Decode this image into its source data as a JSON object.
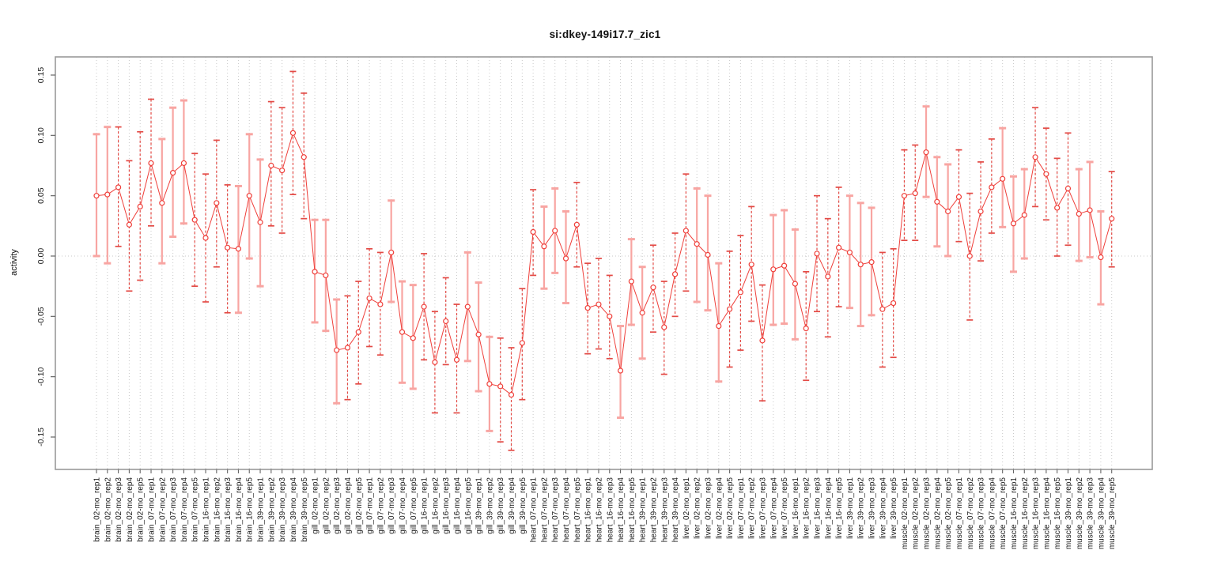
{
  "figure": {
    "title": "si:dkey-149i17.7_zic1"
  },
  "chart_data": {
    "type": "scatter",
    "title": "si:dkey-149i17.7_zic1",
    "xlabel": "",
    "ylabel": "activity",
    "ylim": [
      -0.177,
      0.165
    ],
    "yticks": [
      -0.15,
      -0.1,
      -0.05,
      0.0,
      0.05,
      0.1,
      0.15
    ],
    "grid": "dotted vertical gridline per sample; dotted horizontal line at y=0",
    "legend": "none",
    "marker": "open-circle with error bars, connected by line",
    "colors": {
      "series": "#ef3f3a",
      "bar_dark": "#e34a45",
      "bar_light": "#f8a5a2",
      "grid": "#c9c9c9",
      "frame": "#9a9a9a",
      "tick": "#666666",
      "text": "#1a1a1a"
    },
    "points": [
      {
        "label": "brain_02-mo_rep1",
        "value": 0.05,
        "lo": 0.0,
        "hi": 0.101
      },
      {
        "label": "brain_02-mo_rep2",
        "value": 0.051,
        "lo": -0.006,
        "hi": 0.107
      },
      {
        "label": "brain_02-mo_rep3",
        "value": 0.057,
        "lo": 0.008,
        "hi": 0.107
      },
      {
        "label": "brain_02-mo_rep4",
        "value": 0.026,
        "lo": -0.029,
        "hi": 0.079
      },
      {
        "label": "brain_02-mo_rep5",
        "value": 0.041,
        "lo": -0.02,
        "hi": 0.103
      },
      {
        "label": "brain_07-mo_rep1",
        "value": 0.077,
        "lo": 0.025,
        "hi": 0.13
      },
      {
        "label": "brain_07-mo_rep2",
        "value": 0.044,
        "lo": -0.006,
        "hi": 0.097
      },
      {
        "label": "brain_07-mo_rep3",
        "value": 0.069,
        "lo": 0.016,
        "hi": 0.123
      },
      {
        "label": "brain_07-mo_rep4",
        "value": 0.077,
        "lo": 0.027,
        "hi": 0.129
      },
      {
        "label": "brain_07-mo_rep5",
        "value": 0.03,
        "lo": -0.025,
        "hi": 0.085
      },
      {
        "label": "brain_16-mo_rep1",
        "value": 0.015,
        "lo": -0.038,
        "hi": 0.068
      },
      {
        "label": "brain_16-mo_rep2",
        "value": 0.044,
        "lo": -0.009,
        "hi": 0.096
      },
      {
        "label": "brain_16-mo_rep3",
        "value": 0.007,
        "lo": -0.047,
        "hi": 0.059
      },
      {
        "label": "brain_16-mo_rep4",
        "value": 0.006,
        "lo": -0.047,
        "hi": 0.058
      },
      {
        "label": "brain_16-mo_rep5",
        "value": 0.05,
        "lo": -0.002,
        "hi": 0.101
      },
      {
        "label": "brain_39-mo_rep1",
        "value": 0.028,
        "lo": -0.025,
        "hi": 0.08
      },
      {
        "label": "brain_39-mo_rep2",
        "value": 0.075,
        "lo": 0.025,
        "hi": 0.128
      },
      {
        "label": "brain_39-mo_rep3",
        "value": 0.071,
        "lo": 0.019,
        "hi": 0.123
      },
      {
        "label": "brain_39-mo_rep4",
        "value": 0.102,
        "lo": 0.051,
        "hi": 0.153
      },
      {
        "label": "brain_39-mo_rep5",
        "value": 0.082,
        "lo": 0.031,
        "hi": 0.135
      },
      {
        "label": "gill_02-mo_rep1",
        "value": -0.013,
        "lo": -0.055,
        "hi": 0.03
      },
      {
        "label": "gill_02-mo_rep2",
        "value": -0.016,
        "lo": -0.062,
        "hi": 0.03
      },
      {
        "label": "gill_02-mo_rep3",
        "value": -0.078,
        "lo": -0.122,
        "hi": -0.036
      },
      {
        "label": "gill_02-mo_rep4",
        "value": -0.076,
        "lo": -0.119,
        "hi": -0.033
      },
      {
        "label": "gill_02-mo_rep5",
        "value": -0.063,
        "lo": -0.106,
        "hi": -0.021
      },
      {
        "label": "gill_07-mo_rep1",
        "value": -0.035,
        "lo": -0.075,
        "hi": 0.006
      },
      {
        "label": "gill_07-mo_rep2",
        "value": -0.04,
        "lo": -0.082,
        "hi": 0.003
      },
      {
        "label": "gill_07-mo_rep3",
        "value": 0.003,
        "lo": -0.038,
        "hi": 0.046
      },
      {
        "label": "gill_07-mo_rep4",
        "value": -0.063,
        "lo": -0.105,
        "hi": -0.021
      },
      {
        "label": "gill_07-mo_rep5",
        "value": -0.068,
        "lo": -0.11,
        "hi": -0.024
      },
      {
        "label": "gill_16-mo_rep1",
        "value": -0.042,
        "lo": -0.086,
        "hi": 0.002
      },
      {
        "label": "gill_16-mo_rep2",
        "value": -0.088,
        "lo": -0.13,
        "hi": -0.046
      },
      {
        "label": "gill_16-mo_rep3",
        "value": -0.054,
        "lo": -0.09,
        "hi": -0.018
      },
      {
        "label": "gill_16-mo_rep4",
        "value": -0.086,
        "lo": -0.13,
        "hi": -0.04
      },
      {
        "label": "gill_16-mo_rep5",
        "value": -0.042,
        "lo": -0.087,
        "hi": 0.003
      },
      {
        "label": "gill_39-mo_rep1",
        "value": -0.065,
        "lo": -0.112,
        "hi": -0.022
      },
      {
        "label": "gill_39-mo_rep2",
        "value": -0.106,
        "lo": -0.145,
        "hi": -0.067
      },
      {
        "label": "gill_39-mo_rep3",
        "value": -0.108,
        "lo": -0.154,
        "hi": -0.068
      },
      {
        "label": "gill_39-mo_rep4",
        "value": -0.115,
        "lo": -0.161,
        "hi": -0.076
      },
      {
        "label": "gill_39-mo_rep5",
        "value": -0.072,
        "lo": -0.119,
        "hi": -0.027
      },
      {
        "label": "heart_07-mo_rep1",
        "value": 0.02,
        "lo": -0.016,
        "hi": 0.055
      },
      {
        "label": "heart_07-mo_rep2",
        "value": 0.008,
        "lo": -0.027,
        "hi": 0.041
      },
      {
        "label": "heart_07-mo_rep3",
        "value": 0.021,
        "lo": -0.014,
        "hi": 0.056
      },
      {
        "label": "heart_07-mo_rep4",
        "value": -0.002,
        "lo": -0.039,
        "hi": 0.037
      },
      {
        "label": "heart_07-mo_rep5",
        "value": 0.026,
        "lo": -0.009,
        "hi": 0.061
      },
      {
        "label": "heart_16-mo_rep1",
        "value": -0.043,
        "lo": -0.081,
        "hi": -0.006
      },
      {
        "label": "heart_16-mo_rep2",
        "value": -0.04,
        "lo": -0.077,
        "hi": -0.002
      },
      {
        "label": "heart_16-mo_rep3",
        "value": -0.05,
        "lo": -0.085,
        "hi": -0.016
      },
      {
        "label": "heart_16-mo_rep4",
        "value": -0.095,
        "lo": -0.134,
        "hi": -0.058
      },
      {
        "label": "heart_16-mo_rep5",
        "value": -0.021,
        "lo": -0.057,
        "hi": 0.014
      },
      {
        "label": "heart_39-mo_rep1",
        "value": -0.047,
        "lo": -0.085,
        "hi": -0.009
      },
      {
        "label": "heart_39-mo_rep2",
        "value": -0.026,
        "lo": -0.063,
        "hi": 0.009
      },
      {
        "label": "heart_39-mo_rep3",
        "value": -0.059,
        "lo": -0.098,
        "hi": -0.021
      },
      {
        "label": "heart_39-mo_rep4",
        "value": -0.015,
        "lo": -0.05,
        "hi": 0.019
      },
      {
        "label": "liver_02-mo_rep1",
        "value": 0.021,
        "lo": -0.029,
        "hi": 0.068
      },
      {
        "label": "liver_02-mo_rep2",
        "value": 0.01,
        "lo": -0.038,
        "hi": 0.056
      },
      {
        "label": "liver_02-mo_rep3",
        "value": 0.001,
        "lo": -0.045,
        "hi": 0.05
      },
      {
        "label": "liver_02-mo_rep4",
        "value": -0.058,
        "lo": -0.104,
        "hi": -0.006
      },
      {
        "label": "liver_02-mo_rep5",
        "value": -0.044,
        "lo": -0.092,
        "hi": 0.004
      },
      {
        "label": "liver_07-mo_rep1",
        "value": -0.03,
        "lo": -0.078,
        "hi": 0.017
      },
      {
        "label": "liver_07-mo_rep2",
        "value": -0.007,
        "lo": -0.054,
        "hi": 0.041
      },
      {
        "label": "liver_07-mo_rep3",
        "value": -0.07,
        "lo": -0.12,
        "hi": -0.024
      },
      {
        "label": "liver_07-mo_rep4",
        "value": -0.011,
        "lo": -0.057,
        "hi": 0.034
      },
      {
        "label": "liver_07-mo_rep5",
        "value": -0.008,
        "lo": -0.056,
        "hi": 0.038
      },
      {
        "label": "liver_16-mo_rep1",
        "value": -0.023,
        "lo": -0.069,
        "hi": 0.022
      },
      {
        "label": "liver_16-mo_rep2",
        "value": -0.06,
        "lo": -0.103,
        "hi": -0.013
      },
      {
        "label": "liver_16-mo_rep3",
        "value": 0.002,
        "lo": -0.046,
        "hi": 0.05
      },
      {
        "label": "liver_16-mo_rep4",
        "value": -0.017,
        "lo": -0.067,
        "hi": 0.031
      },
      {
        "label": "liver_16-mo_rep5",
        "value": 0.007,
        "lo": -0.042,
        "hi": 0.057
      },
      {
        "label": "liver_39-mo_rep1",
        "value": 0.003,
        "lo": -0.043,
        "hi": 0.05
      },
      {
        "label": "liver_39-mo_rep2",
        "value": -0.007,
        "lo": -0.058,
        "hi": 0.044
      },
      {
        "label": "liver_39-mo_rep3",
        "value": -0.005,
        "lo": -0.049,
        "hi": 0.04
      },
      {
        "label": "liver_39-mo_rep4",
        "value": -0.044,
        "lo": -0.092,
        "hi": 0.003
      },
      {
        "label": "liver_39-mo_rep5",
        "value": -0.039,
        "lo": -0.084,
        "hi": 0.006
      },
      {
        "label": "muscle_02-mo_rep1",
        "value": 0.05,
        "lo": 0.013,
        "hi": 0.088
      },
      {
        "label": "muscle_02-mo_rep2",
        "value": 0.052,
        "lo": 0.013,
        "hi": 0.092
      },
      {
        "label": "muscle_02-mo_rep3",
        "value": 0.086,
        "lo": 0.049,
        "hi": 0.124
      },
      {
        "label": "muscle_02-mo_rep4",
        "value": 0.045,
        "lo": 0.008,
        "hi": 0.082
      },
      {
        "label": "muscle_02-mo_rep5",
        "value": 0.037,
        "lo": 0.0,
        "hi": 0.076
      },
      {
        "label": "muscle_07-mo_rep1",
        "value": 0.049,
        "lo": 0.012,
        "hi": 0.088
      },
      {
        "label": "muscle_07-mo_rep2",
        "value": 0.0,
        "lo": -0.053,
        "hi": 0.052
      },
      {
        "label": "muscle_07-mo_rep3",
        "value": 0.037,
        "lo": -0.004,
        "hi": 0.078
      },
      {
        "label": "muscle_07-mo_rep4",
        "value": 0.057,
        "lo": 0.019,
        "hi": 0.097
      },
      {
        "label": "muscle_07-mo_rep5",
        "value": 0.064,
        "lo": 0.024,
        "hi": 0.106
      },
      {
        "label": "muscle_16-mo_rep1",
        "value": 0.027,
        "lo": -0.013,
        "hi": 0.066
      },
      {
        "label": "muscle_16-mo_rep2",
        "value": 0.034,
        "lo": -0.002,
        "hi": 0.072
      },
      {
        "label": "muscle_16-mo_rep3",
        "value": 0.082,
        "lo": 0.041,
        "hi": 0.123
      },
      {
        "label": "muscle_16-mo_rep4",
        "value": 0.068,
        "lo": 0.03,
        "hi": 0.106
      },
      {
        "label": "muscle_16-mo_rep5",
        "value": 0.04,
        "lo": 0.0,
        "hi": 0.081
      },
      {
        "label": "muscle_39-mo_rep1",
        "value": 0.056,
        "lo": 0.009,
        "hi": 0.102
      },
      {
        "label": "muscle_39-mo_rep2",
        "value": 0.035,
        "lo": -0.004,
        "hi": 0.072
      },
      {
        "label": "muscle_39-mo_rep3",
        "value": 0.038,
        "lo": -0.001,
        "hi": 0.078
      },
      {
        "label": "muscle_39-mo_rep4",
        "value": -0.001,
        "lo": -0.04,
        "hi": 0.037
      },
      {
        "label": "muscle_39-mo_rep5",
        "value": 0.031,
        "lo": -0.009,
        "hi": 0.07
      }
    ]
  }
}
